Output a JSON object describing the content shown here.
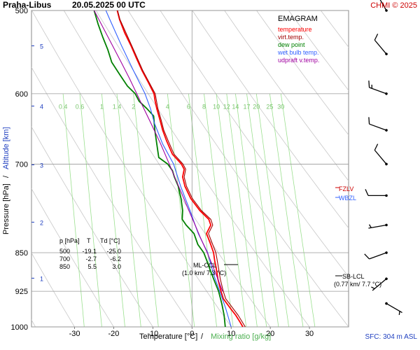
{
  "header": {
    "station": "Praha-Libus",
    "datetime": "20.05.2025 00 UTC",
    "credit": "CHMI © 2025"
  },
  "legend": {
    "title": "EMAGRAM",
    "items": [
      {
        "label": "temperature",
        "color": "#ff0000"
      },
      {
        "label": "virt.temp.",
        "color": "#a00000"
      },
      {
        "label": "dew point",
        "color": "#008000"
      },
      {
        "label": "wet bulb temp.",
        "color": "#3060ff"
      },
      {
        "label": "udpraft v.temp.",
        "color": "#a000a0"
      }
    ]
  },
  "axes": {
    "x_label_temperature": "Temperature [°C]",
    "x_label_sep": "/",
    "x_label_mixing": "Mixing ratio [g/kg]",
    "y_label_pressure": "Pressure [hPa]",
    "y_label_sep": "/",
    "y_label_altitude": "Altitude [km]",
    "sfc_note": "SFC: 304 m ASL"
  },
  "annotations": {
    "fzlv": "FZLV",
    "wbzl": "WBZL",
    "ml_ccl_line1": "ML-CCL",
    "ml_ccl_line2": "(1.0 km/ 7.3 °C)",
    "sb_lcl_line1": "SB-LCL",
    "sb_lcl_line2": "(0.77 km/ 7.7 °C)"
  },
  "table": {
    "header": [
      "p [hPa]",
      "T",
      "Td [°C]"
    ],
    "rows": [
      [
        "500",
        "-19.1",
        "-25.0"
      ],
      [
        "700",
        "-2.7",
        "-6.2"
      ],
      [
        "850",
        "5.5",
        "3.0"
      ]
    ]
  },
  "chart_data": {
    "type": "line",
    "title": "EMAGRAM",
    "xlabel": "Temperature [°C] / Mixing ratio [g/kg]",
    "ylabel": "Pressure [hPa] / Altitude [km]",
    "x_ticks": [
      -30,
      -20,
      -10,
      0,
      10,
      20,
      30
    ],
    "xlim": [
      -41,
      40
    ],
    "y_ticks": [
      500,
      600,
      700,
      850,
      925,
      1000
    ],
    "ylim": [
      500,
      1000
    ],
    "y_scale": "log",
    "altitude_ticks_km": [
      1,
      2,
      3,
      4,
      5
    ],
    "mixing_ratio_labels": [
      "0.4",
      "0.6",
      "1",
      "1.4",
      "2",
      "4",
      "6",
      "8",
      "10",
      "12",
      "14",
      "17",
      "20",
      "25",
      "30"
    ],
    "series": [
      {
        "name": "temperature",
        "color": "#ff0000",
        "points": [
          [
            1000,
            13.0
          ],
          [
            990,
            12.3
          ],
          [
            975,
            11.2
          ],
          [
            960,
            9.8
          ],
          [
            940,
            8.0
          ],
          [
            925,
            7.4
          ],
          [
            900,
            6.6
          ],
          [
            880,
            6.2
          ],
          [
            865,
            5.8
          ],
          [
            850,
            5.5
          ],
          [
            835,
            4.8
          ],
          [
            815,
            3.7
          ],
          [
            800,
            4.8
          ],
          [
            790,
            4.3
          ],
          [
            775,
            2.0
          ],
          [
            755,
            -0.3
          ],
          [
            735,
            -1.8
          ],
          [
            720,
            -2.4
          ],
          [
            708,
            -2.0
          ],
          [
            700,
            -2.7
          ],
          [
            685,
            -5.0
          ],
          [
            665,
            -6.5
          ],
          [
            650,
            -7.5
          ],
          [
            635,
            -8.2
          ],
          [
            620,
            -9.0
          ],
          [
            610,
            -9.4
          ],
          [
            600,
            -9.7
          ],
          [
            585,
            -11.2
          ],
          [
            570,
            -12.8
          ],
          [
            555,
            -14.2
          ],
          [
            540,
            -15.6
          ],
          [
            525,
            -17.2
          ],
          [
            510,
            -18.5
          ],
          [
            500,
            -19.1
          ]
        ]
      },
      {
        "name": "virt.temp.",
        "color": "#a00000",
        "points": [
          [
            1000,
            13.6
          ],
          [
            975,
            11.8
          ],
          [
            940,
            8.6
          ],
          [
            925,
            8.0
          ],
          [
            900,
            7.2
          ],
          [
            880,
            6.8
          ],
          [
            850,
            6.1
          ],
          [
            835,
            5.3
          ],
          [
            815,
            4.2
          ],
          [
            800,
            5.3
          ],
          [
            790,
            4.8
          ],
          [
            775,
            2.4
          ],
          [
            755,
            0.1
          ],
          [
            735,
            -1.4
          ],
          [
            720,
            -2.0
          ],
          [
            708,
            -1.6
          ],
          [
            700,
            -2.3
          ],
          [
            685,
            -4.6
          ],
          [
            665,
            -6.1
          ],
          [
            650,
            -7.2
          ],
          [
            635,
            -7.9
          ],
          [
            620,
            -8.7
          ],
          [
            600,
            -9.4
          ],
          [
            570,
            -12.6
          ],
          [
            540,
            -15.4
          ],
          [
            510,
            -18.4
          ],
          [
            500,
            -19.0
          ]
        ]
      },
      {
        "name": "dew point",
        "color": "#008000",
        "points": [
          [
            1000,
            8.5
          ],
          [
            975,
            8.2
          ],
          [
            950,
            7.6
          ],
          [
            925,
            6.8
          ],
          [
            900,
            5.5
          ],
          [
            880,
            4.5
          ],
          [
            865,
            3.8
          ],
          [
            850,
            3.0
          ],
          [
            835,
            1.5
          ],
          [
            815,
            0.5
          ],
          [
            800,
            -1.5
          ],
          [
            790,
            -2.5
          ],
          [
            775,
            -2.4
          ],
          [
            755,
            -2.8
          ],
          [
            735,
            -3.5
          ],
          [
            720,
            -4.5
          ],
          [
            710,
            -5.0
          ],
          [
            700,
            -6.2
          ],
          [
            690,
            -8.5
          ],
          [
            670,
            -9.0
          ],
          [
            650,
            -9.5
          ],
          [
            630,
            -9.8
          ],
          [
            620,
            -11.5
          ],
          [
            610,
            -13.5
          ],
          [
            600,
            -14.5
          ],
          [
            590,
            -16.5
          ],
          [
            575,
            -18.5
          ],
          [
            560,
            -20.5
          ],
          [
            545,
            -21.5
          ],
          [
            530,
            -22.8
          ],
          [
            515,
            -24.0
          ],
          [
            500,
            -25.0
          ]
        ]
      },
      {
        "name": "wet bulb temp.",
        "color": "#3060ff",
        "points": [
          [
            1000,
            10.0
          ],
          [
            960,
            8.6
          ],
          [
            925,
            7.1
          ],
          [
            900,
            5.9
          ],
          [
            880,
            5.1
          ],
          [
            850,
            4.0
          ],
          [
            815,
            1.6
          ],
          [
            800,
            0.8
          ],
          [
            775,
            -0.5
          ],
          [
            755,
            -1.7
          ],
          [
            735,
            -2.9
          ],
          [
            700,
            -4.7
          ],
          [
            670,
            -7.5
          ],
          [
            640,
            -9.6
          ],
          [
            620,
            -10.6
          ],
          [
            600,
            -12.0
          ],
          [
            570,
            -15.0
          ],
          [
            540,
            -18.0
          ],
          [
            510,
            -21.0
          ],
          [
            500,
            -22.0
          ]
        ]
      },
      {
        "name": "udpraft v.temp.",
        "color": "#a000a0",
        "points": [
          [
            925,
            7.8
          ],
          [
            900,
            6.6
          ],
          [
            870,
            5.0
          ],
          [
            850,
            3.9
          ],
          [
            820,
            2.0
          ],
          [
            800,
            0.8
          ],
          [
            775,
            -0.8
          ],
          [
            750,
            -2.4
          ],
          [
            725,
            -4.1
          ],
          [
            700,
            -5.8
          ],
          [
            670,
            -8.0
          ],
          [
            640,
            -10.5
          ],
          [
            610,
            -13.2
          ],
          [
            600,
            -14.1
          ],
          [
            580,
            -16.0
          ],
          [
            560,
            -18.1
          ],
          [
            540,
            -20.3
          ],
          [
            520,
            -22.6
          ],
          [
            500,
            -25.0
          ]
        ]
      }
    ],
    "wind_barbs": [
      {
        "p": 500,
        "dir": 330,
        "kt": 15
      },
      {
        "p": 550,
        "dir": 320,
        "kt": 10
      },
      {
        "p": 600,
        "dir": 290,
        "kt": 15
      },
      {
        "p": 650,
        "dir": 290,
        "kt": 10
      },
      {
        "p": 700,
        "dir": 320,
        "kt": 10
      },
      {
        "p": 750,
        "dir": 270,
        "kt": 10
      },
      {
        "p": 800,
        "dir": 260,
        "kt": 5
      },
      {
        "p": 850,
        "dir": 250,
        "kt": 10
      },
      {
        "p": 900,
        "dir": 230,
        "kt": 5
      },
      {
        "p": 950,
        "dir": 120,
        "kt": 5
      }
    ]
  }
}
